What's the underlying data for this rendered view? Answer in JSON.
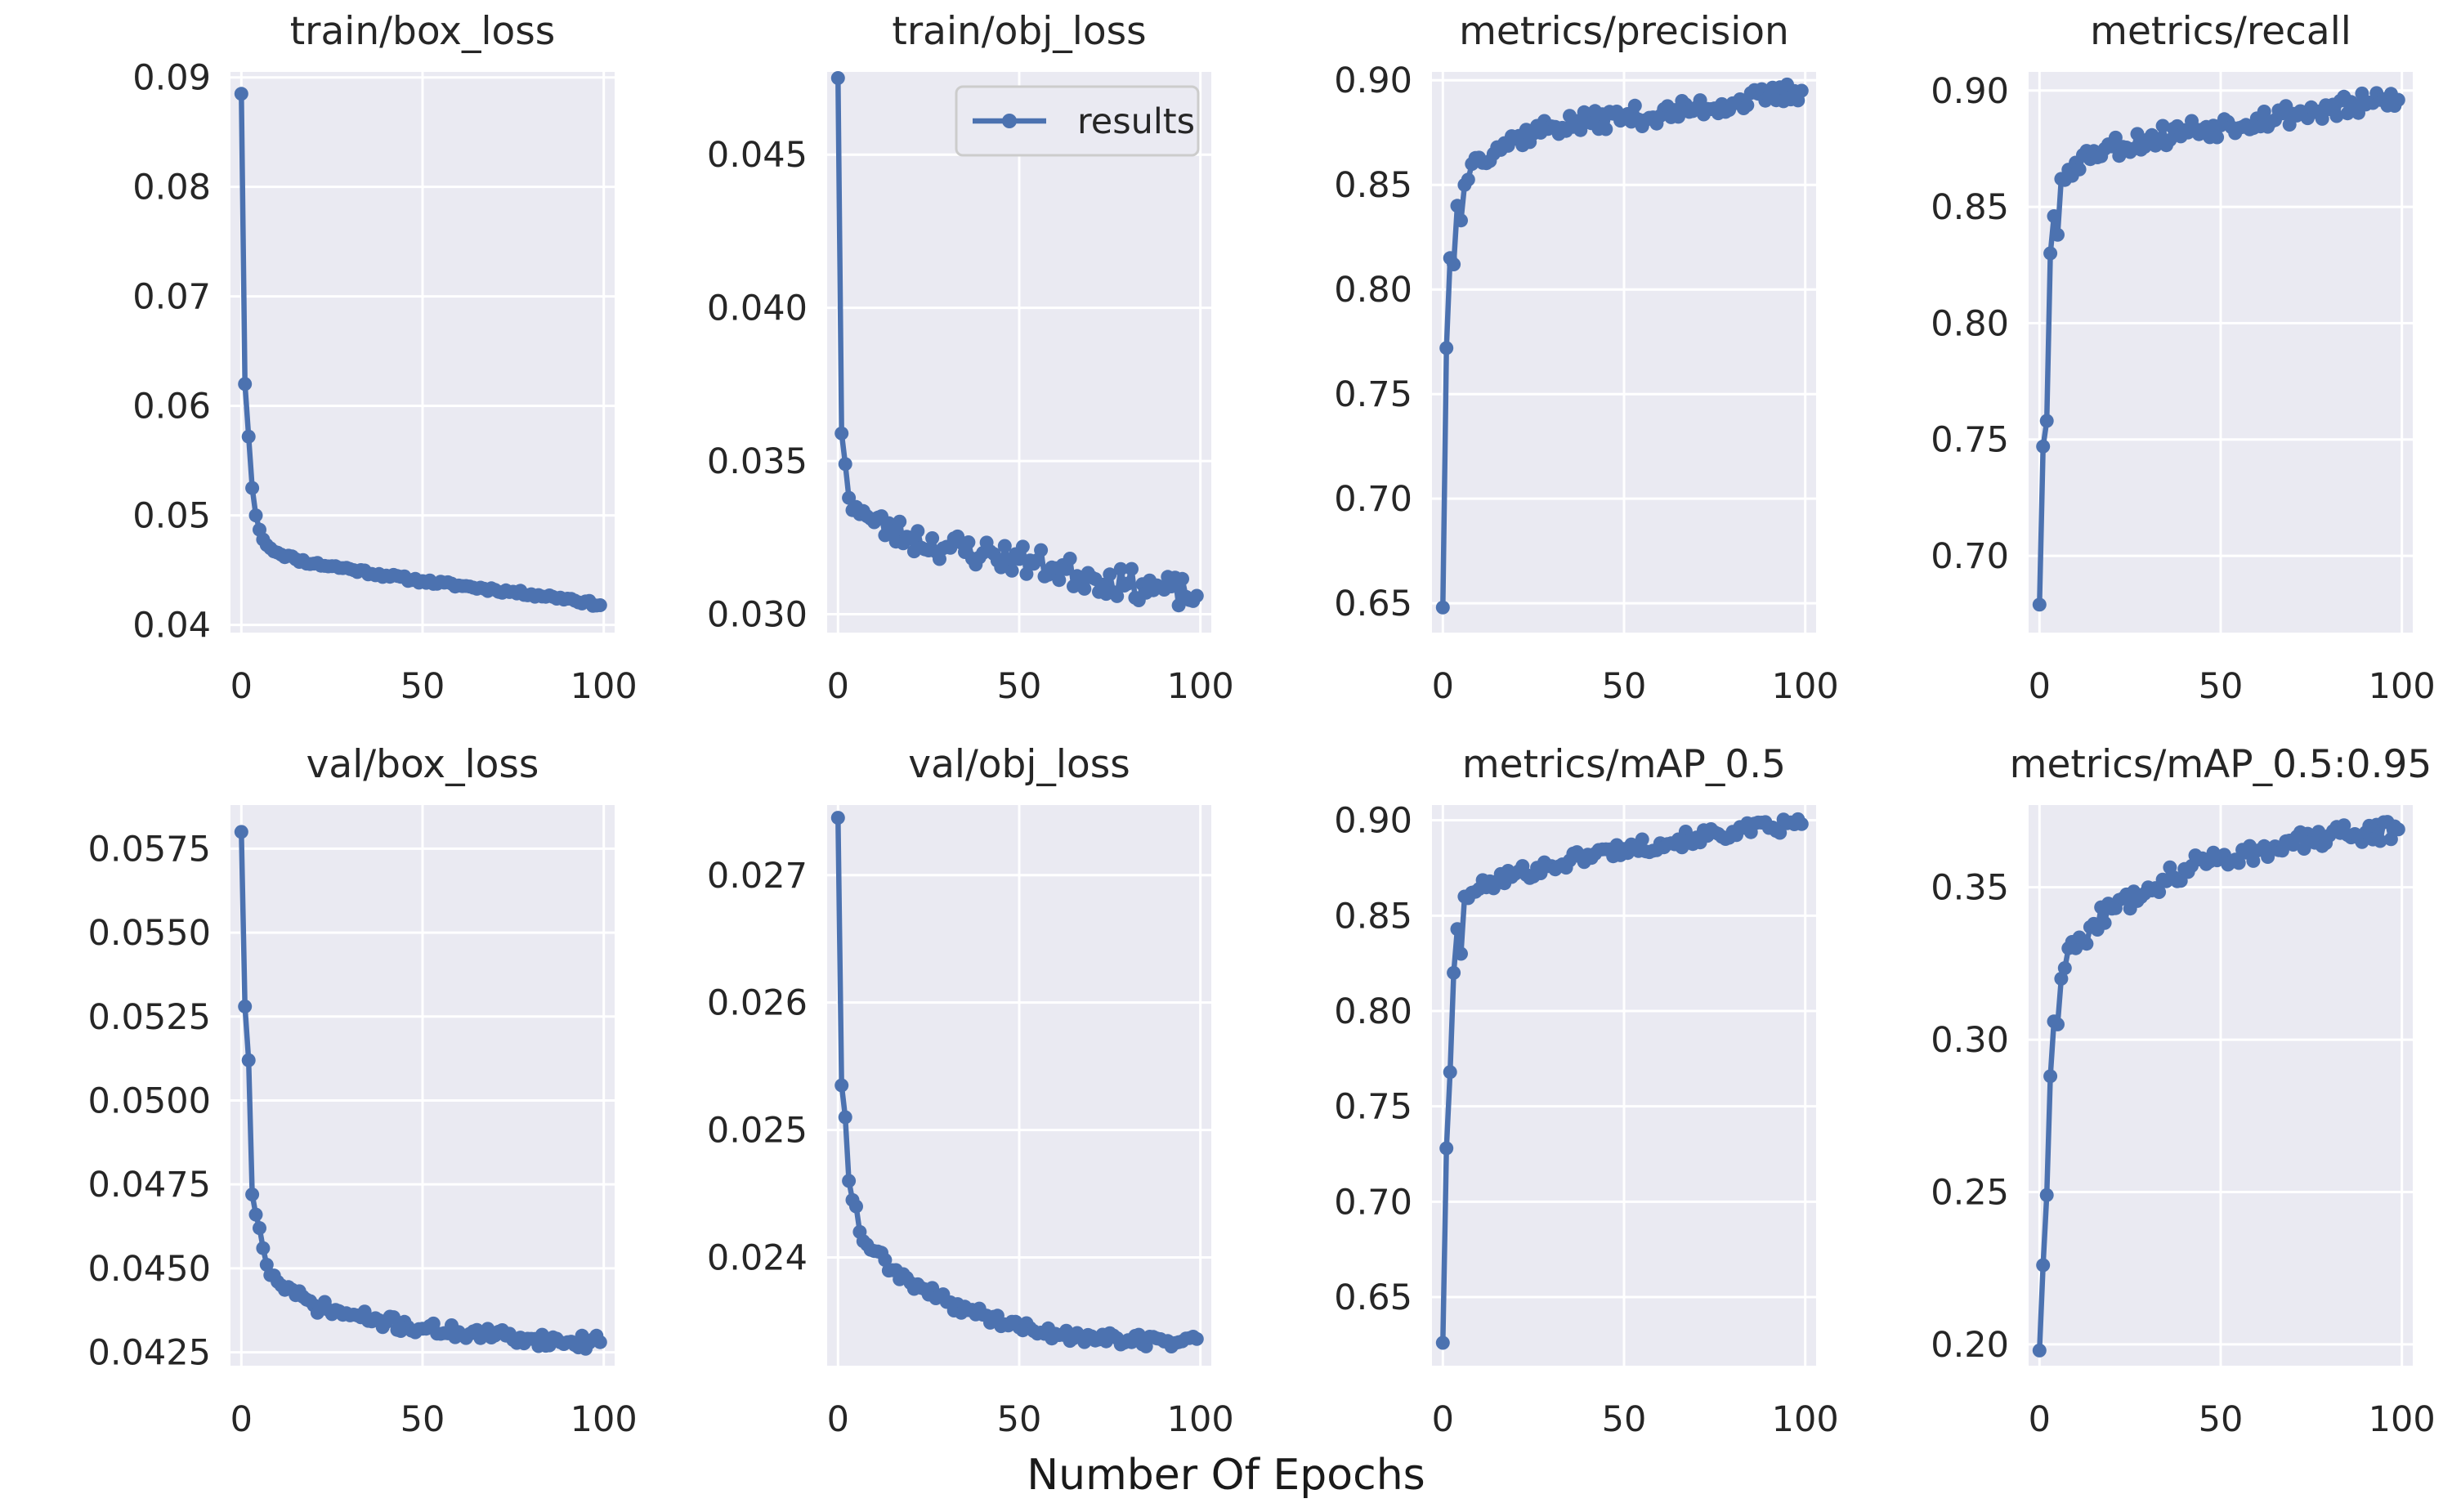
{
  "figure": {
    "xlabel": "Number Of Epochs",
    "line_color": "#4c72b0",
    "panel_bg": "#eaeaf2",
    "grid_color": "#ffffff",
    "text_color": "#262626"
  },
  "chart_data": [
    {
      "type": "line",
      "title": "train/box_loss",
      "series": [
        {
          "name": "results",
          "anchors": [
            [
              0,
              0.0885
            ],
            [
              1,
              0.062
            ],
            [
              2,
              0.0572
            ],
            [
              3,
              0.0525
            ],
            [
              4,
              0.05
            ],
            [
              5,
              0.0487
            ],
            [
              6,
              0.0478
            ],
            [
              8,
              0.047
            ],
            [
              10,
              0.0466
            ],
            [
              15,
              0.046
            ],
            [
              20,
              0.0456
            ],
            [
              30,
              0.0451
            ],
            [
              40,
              0.0445
            ],
            [
              50,
              0.044
            ],
            [
              60,
              0.0436
            ],
            [
              70,
              0.0432
            ],
            [
              80,
              0.0428
            ],
            [
              90,
              0.0424
            ],
            [
              99,
              0.0418
            ]
          ],
          "noise": 0.0002,
          "seed": 11
        }
      ],
      "xlim": [
        -3,
        103
      ],
      "ylim": [
        0.0393,
        0.0905
      ],
      "xticks": [
        0,
        50,
        100
      ],
      "yticks": [
        0.04,
        0.05,
        0.06,
        0.07,
        0.08,
        0.09
      ],
      "ytick_labels": [
        "0.04",
        "0.05",
        "0.06",
        "0.07",
        "0.08",
        "0.09"
      ]
    },
    {
      "type": "line",
      "title": "train/obj_loss",
      "legend": {
        "label": "results",
        "position": "top-right"
      },
      "series": [
        {
          "name": "results",
          "anchors": [
            [
              0,
              0.0475
            ],
            [
              1,
              0.0359
            ],
            [
              2,
              0.0349
            ],
            [
              3,
              0.0338
            ],
            [
              5,
              0.0335
            ],
            [
              8,
              0.0332
            ],
            [
              10,
              0.033
            ],
            [
              15,
              0.0327
            ],
            [
              20,
              0.0325
            ],
            [
              30,
              0.0322
            ],
            [
              40,
              0.032
            ],
            [
              50,
              0.0318
            ],
            [
              60,
              0.0315
            ],
            [
              70,
              0.0312
            ],
            [
              80,
              0.031
            ],
            [
              90,
              0.0308
            ],
            [
              99,
              0.0306
            ]
          ],
          "noise": 0.0005,
          "seed": 23
        }
      ],
      "xlim": [
        -3,
        103
      ],
      "ylim": [
        0.0294,
        0.0477
      ],
      "xticks": [
        0,
        50,
        100
      ],
      "yticks": [
        0.03,
        0.035,
        0.04,
        0.045
      ],
      "ytick_labels": [
        "0.030",
        "0.035",
        "0.040",
        "0.045"
      ]
    },
    {
      "type": "line",
      "title": "metrics/precision",
      "series": [
        {
          "name": "results",
          "anchors": [
            [
              0,
              0.648
            ],
            [
              1,
              0.772
            ],
            [
              2,
              0.815
            ],
            [
              3,
              0.812
            ],
            [
              4,
              0.84
            ],
            [
              5,
              0.833
            ],
            [
              6,
              0.85
            ],
            [
              8,
              0.86
            ],
            [
              10,
              0.863
            ],
            [
              15,
              0.868
            ],
            [
              20,
              0.872
            ],
            [
              30,
              0.878
            ],
            [
              40,
              0.88
            ],
            [
              50,
              0.883
            ],
            [
              60,
              0.883
            ],
            [
              70,
              0.887
            ],
            [
              80,
              0.889
            ],
            [
              90,
              0.892
            ],
            [
              99,
              0.895
            ]
          ],
          "noise": 0.005,
          "seed": 37
        }
      ],
      "xlim": [
        -3,
        103
      ],
      "ylim": [
        0.636,
        0.904
      ],
      "xticks": [
        0,
        50,
        100
      ],
      "yticks": [
        0.65,
        0.7,
        0.75,
        0.8,
        0.85,
        0.9
      ],
      "ytick_labels": [
        "0.65",
        "0.70",
        "0.75",
        "0.80",
        "0.85",
        "0.90"
      ]
    },
    {
      "type": "line",
      "title": "metrics/recall",
      "series": [
        {
          "name": "results",
          "anchors": [
            [
              0,
              0.679
            ],
            [
              1,
              0.747
            ],
            [
              2,
              0.758
            ],
            [
              3,
              0.83
            ],
            [
              4,
              0.846
            ],
            [
              5,
              0.838
            ],
            [
              6,
              0.862
            ],
            [
              8,
              0.866
            ],
            [
              10,
              0.869
            ],
            [
              15,
              0.874
            ],
            [
              20,
              0.876
            ],
            [
              30,
              0.879
            ],
            [
              40,
              0.883
            ],
            [
              50,
              0.885
            ],
            [
              60,
              0.888
            ],
            [
              70,
              0.89
            ],
            [
              80,
              0.892
            ],
            [
              90,
              0.894
            ],
            [
              99,
              0.896
            ]
          ],
          "noise": 0.005,
          "seed": 53
        }
      ],
      "xlim": [
        -3,
        103
      ],
      "ylim": [
        0.667,
        0.908
      ],
      "xticks": [
        0,
        50,
        100
      ],
      "yticks": [
        0.7,
        0.75,
        0.8,
        0.85,
        0.9
      ],
      "ytick_labels": [
        "0.70",
        "0.75",
        "0.80",
        "0.85",
        "0.90"
      ]
    },
    {
      "type": "line",
      "title": "val/box_loss",
      "series": [
        {
          "name": "results",
          "anchors": [
            [
              0,
              0.058
            ],
            [
              1,
              0.0528
            ],
            [
              2,
              0.0512
            ],
            [
              3,
              0.0472
            ],
            [
              4,
              0.0466
            ],
            [
              5,
              0.0462
            ],
            [
              6,
              0.0456
            ],
            [
              8,
              0.0448
            ],
            [
              10,
              0.0446
            ],
            [
              15,
              0.0442
            ],
            [
              20,
              0.0439
            ],
            [
              30,
              0.0436
            ],
            [
              40,
              0.0434
            ],
            [
              50,
              0.0432
            ],
            [
              60,
              0.0431
            ],
            [
              70,
              0.043
            ],
            [
              80,
              0.0429
            ],
            [
              90,
              0.0428
            ],
            [
              99,
              0.0428
            ]
          ],
          "noise": 0.0002,
          "seed": 71
        }
      ],
      "xlim": [
        -3,
        103
      ],
      "ylim": [
        0.0421,
        0.0588
      ],
      "xticks": [
        0,
        50,
        100
      ],
      "yticks": [
        0.0425,
        0.045,
        0.0475,
        0.05,
        0.0525,
        0.055,
        0.0575
      ],
      "ytick_labels": [
        "0.0425",
        "0.0450",
        "0.0475",
        "0.0500",
        "0.0525",
        "0.0550",
        "0.0575"
      ]
    },
    {
      "type": "line",
      "title": "val/obj_loss",
      "series": [
        {
          "name": "results",
          "anchors": [
            [
              0,
              0.02745
            ],
            [
              1,
              0.02535
            ],
            [
              2,
              0.0251
            ],
            [
              3,
              0.0246
            ],
            [
              4,
              0.02445
            ],
            [
              5,
              0.0244
            ],
            [
              6,
              0.0242
            ],
            [
              8,
              0.0241
            ],
            [
              10,
              0.02405
            ],
            [
              15,
              0.0239
            ],
            [
              20,
              0.0238
            ],
            [
              30,
              0.02365
            ],
            [
              40,
              0.02355
            ],
            [
              50,
              0.02345
            ],
            [
              60,
              0.0234
            ],
            [
              70,
              0.02338
            ],
            [
              80,
              0.02335
            ],
            [
              90,
              0.02334
            ],
            [
              99,
              0.02336
            ]
          ],
          "noise": 5e-05,
          "seed": 89
        }
      ],
      "xlim": [
        -3,
        103
      ],
      "ylim": [
        0.02315,
        0.02755
      ],
      "xticks": [
        0,
        50,
        100
      ],
      "yticks": [
        0.024,
        0.025,
        0.026,
        0.027
      ],
      "ytick_labels": [
        "0.024",
        "0.025",
        "0.026",
        "0.027"
      ]
    },
    {
      "type": "line",
      "title": "metrics/mAP_0.5",
      "series": [
        {
          "name": "results",
          "anchors": [
            [
              0,
              0.626
            ],
            [
              1,
              0.728
            ],
            [
              2,
              0.768
            ],
            [
              3,
              0.82
            ],
            [
              4,
              0.843
            ],
            [
              5,
              0.83
            ],
            [
              6,
              0.86
            ],
            [
              8,
              0.862
            ],
            [
              10,
              0.864
            ],
            [
              15,
              0.868
            ],
            [
              20,
              0.872
            ],
            [
              30,
              0.876
            ],
            [
              40,
              0.882
            ],
            [
              50,
              0.885
            ],
            [
              60,
              0.888
            ],
            [
              70,
              0.891
            ],
            [
              80,
              0.894
            ],
            [
              90,
              0.896
            ],
            [
              99,
              0.898
            ]
          ],
          "noise": 0.004,
          "seed": 101
        }
      ],
      "xlim": [
        -3,
        103
      ],
      "ylim": [
        0.614,
        0.908
      ],
      "xticks": [
        0,
        50,
        100
      ],
      "yticks": [
        0.65,
        0.7,
        0.75,
        0.8,
        0.85,
        0.9
      ],
      "ytick_labels": [
        "0.65",
        "0.70",
        "0.75",
        "0.80",
        "0.85",
        "0.90"
      ]
    },
    {
      "type": "line",
      "title": "metrics/mAP_0.5:0.95",
      "series": [
        {
          "name": "results",
          "anchors": [
            [
              0,
              0.198
            ],
            [
              1,
              0.226
            ],
            [
              2,
              0.249
            ],
            [
              3,
              0.288
            ],
            [
              4,
              0.306
            ],
            [
              5,
              0.305
            ],
            [
              6,
              0.32
            ],
            [
              8,
              0.33
            ],
            [
              10,
              0.33
            ],
            [
              15,
              0.338
            ],
            [
              20,
              0.343
            ],
            [
              30,
              0.35
            ],
            [
              40,
              0.356
            ],
            [
              50,
              0.36
            ],
            [
              60,
              0.362
            ],
            [
              70,
              0.364
            ],
            [
              80,
              0.367
            ],
            [
              90,
              0.368
            ],
            [
              99,
              0.369
            ]
          ],
          "noise": 0.0035,
          "seed": 127
        }
      ],
      "xlim": [
        -3,
        103
      ],
      "ylim": [
        0.193,
        0.377
      ],
      "xticks": [
        0,
        50,
        100
      ],
      "yticks": [
        0.2,
        0.25,
        0.3,
        0.35
      ],
      "ytick_labels": [
        "0.20",
        "0.25",
        "0.30",
        "0.35"
      ]
    }
  ]
}
